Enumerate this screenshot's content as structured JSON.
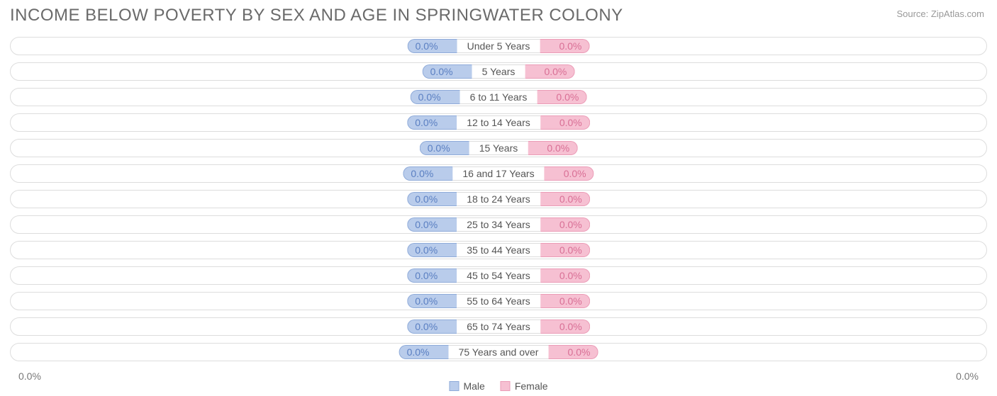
{
  "title": "INCOME BELOW POVERTY BY SEX AND AGE IN SPRINGWATER COLONY",
  "source": "Source: ZipAtlas.com",
  "title_color": "#6a6a6a",
  "title_fontsize": 24,
  "source_color": "#999999",
  "chart": {
    "type": "diverging-bar",
    "background": "#ffffff",
    "track_border": "#dddddd",
    "track_height": 26,
    "track_gap": 10,
    "male_fill": "#b9cceb",
    "male_border": "#8fabd9",
    "male_text": "#5a7fc2",
    "female_fill": "#f6c0d2",
    "female_border": "#eb9cb7",
    "female_text": "#d96f95",
    "label_border": "#dddddd",
    "label_text": "#555555",
    "bar_min_width": 70,
    "rows": [
      {
        "age": "Under 5 Years",
        "male_pct": 0.0,
        "female_pct": 0.0,
        "male_label": "0.0%",
        "female_label": "0.0%"
      },
      {
        "age": "5 Years",
        "male_pct": 0.0,
        "female_pct": 0.0,
        "male_label": "0.0%",
        "female_label": "0.0%"
      },
      {
        "age": "6 to 11 Years",
        "male_pct": 0.0,
        "female_pct": 0.0,
        "male_label": "0.0%",
        "female_label": "0.0%"
      },
      {
        "age": "12 to 14 Years",
        "male_pct": 0.0,
        "female_pct": 0.0,
        "male_label": "0.0%",
        "female_label": "0.0%"
      },
      {
        "age": "15 Years",
        "male_pct": 0.0,
        "female_pct": 0.0,
        "male_label": "0.0%",
        "female_label": "0.0%"
      },
      {
        "age": "16 and 17 Years",
        "male_pct": 0.0,
        "female_pct": 0.0,
        "male_label": "0.0%",
        "female_label": "0.0%"
      },
      {
        "age": "18 to 24 Years",
        "male_pct": 0.0,
        "female_pct": 0.0,
        "male_label": "0.0%",
        "female_label": "0.0%"
      },
      {
        "age": "25 to 34 Years",
        "male_pct": 0.0,
        "female_pct": 0.0,
        "male_label": "0.0%",
        "female_label": "0.0%"
      },
      {
        "age": "35 to 44 Years",
        "male_pct": 0.0,
        "female_pct": 0.0,
        "male_label": "0.0%",
        "female_label": "0.0%"
      },
      {
        "age": "45 to 54 Years",
        "male_pct": 0.0,
        "female_pct": 0.0,
        "male_label": "0.0%",
        "female_label": "0.0%"
      },
      {
        "age": "55 to 64 Years",
        "male_pct": 0.0,
        "female_pct": 0.0,
        "male_label": "0.0%",
        "female_label": "0.0%"
      },
      {
        "age": "65 to 74 Years",
        "male_pct": 0.0,
        "female_pct": 0.0,
        "male_label": "0.0%",
        "female_label": "0.0%"
      },
      {
        "age": "75 Years and over",
        "male_pct": 0.0,
        "female_pct": 0.0,
        "male_label": "0.0%",
        "female_label": "0.0%"
      }
    ],
    "axis_left": "0.0%",
    "axis_right": "0.0%",
    "axis_color": "#777777",
    "legend": {
      "male": "Male",
      "female": "Female"
    }
  }
}
